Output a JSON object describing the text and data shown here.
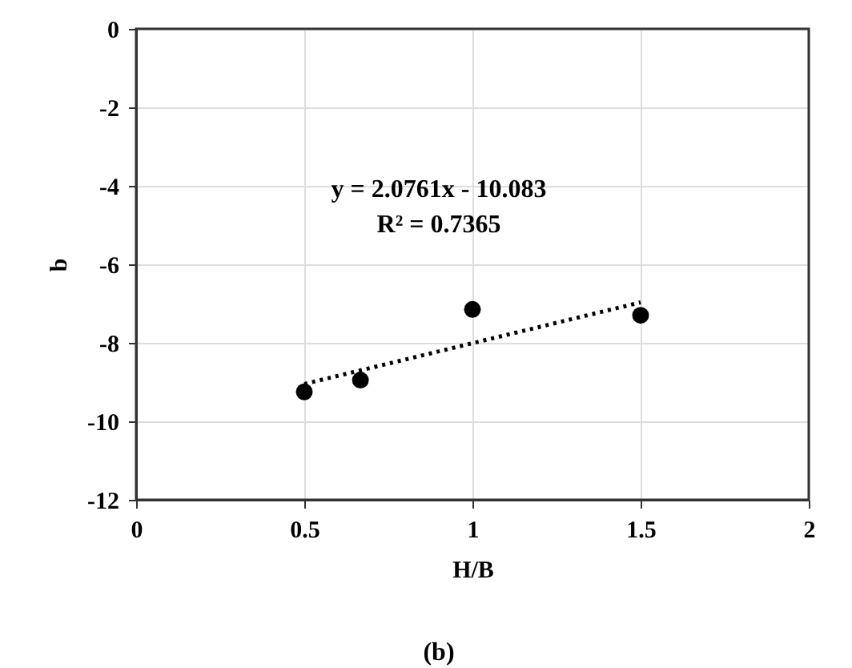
{
  "chart_data": {
    "type": "scatter",
    "xlabel": "H/B",
    "ylabel": "b",
    "xlim": [
      0,
      2
    ],
    "xticks": [
      0,
      0.5,
      1,
      1.5,
      2
    ],
    "ylim": [
      -12,
      0
    ],
    "yticks": [
      -12,
      -10,
      -8,
      -6,
      -4,
      -2,
      0
    ],
    "grid": true,
    "series": [
      {
        "color": "#000000",
        "marker": "circle",
        "x": [
          0.5,
          0.667,
          1.0,
          1.5
        ],
        "values": [
          -9.25,
          -8.95,
          -7.15,
          -7.3
        ]
      },
      {
        "type": "line",
        "color": "#000000",
        "line_style": "dotted",
        "marker": "none",
        "x": [
          0.5,
          1.5
        ],
        "values": [
          -9.05,
          -6.97
        ]
      }
    ],
    "annotations": [
      "y = 2.0761x - 10.083",
      "R² = 0.7365",
      "(b)"
    ]
  }
}
